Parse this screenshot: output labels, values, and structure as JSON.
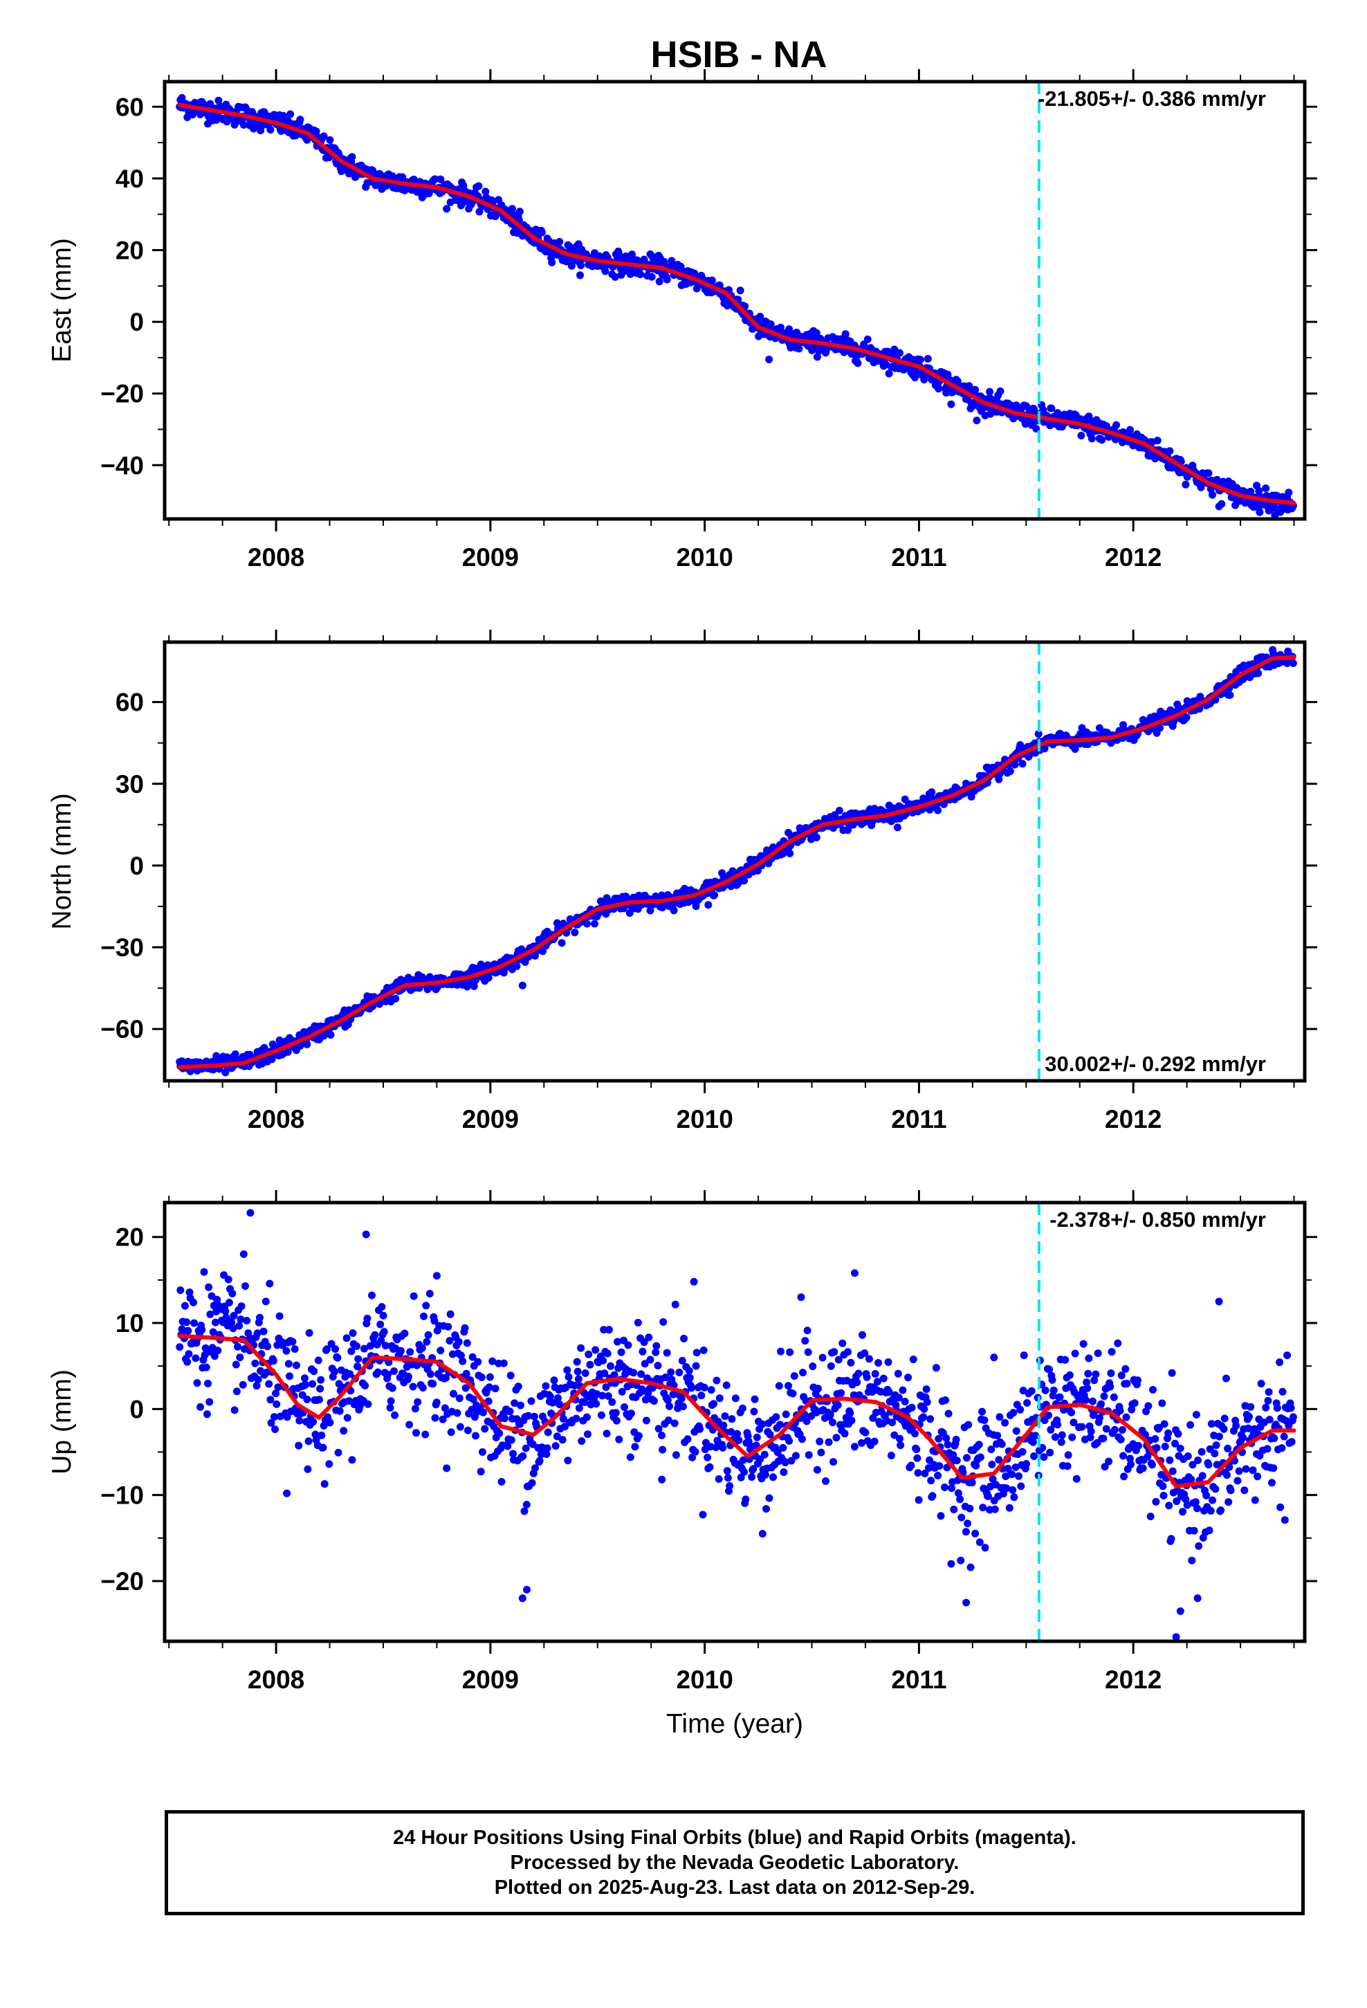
{
  "title": "HSIB - NA",
  "caption": {
    "lines": [
      "24 Hour Positions Using Final Orbits (blue) and Rapid Orbits (magenta).",
      "Processed by the Nevada Geodetic Laboratory.",
      "Plotted on 2025-Aug-23. Last data on 2012-Sep-29."
    ]
  },
  "colors": {
    "points": "#0000ff",
    "fit": "#ff0000",
    "marker_line": "#00e5ee",
    "frame": "#000000"
  },
  "chart_data": [
    {
      "type": "scatter",
      "name": "east",
      "ylabel": "East (mm)",
      "xlabel": "",
      "xlim": [
        2007.48,
        2012.8
      ],
      "ylim": [
        -55,
        67
      ],
      "xticks": [
        2008,
        2009,
        2010,
        2011,
        2012
      ],
      "xtick_labels": [
        "2008",
        "2009",
        "2010",
        "2011",
        "2012"
      ],
      "yticks": [
        60,
        40,
        20,
        0,
        -20,
        -40
      ],
      "ytick_labels": [
        "60",
        "40",
        "20",
        "0",
        "−20",
        "−40"
      ],
      "rate_label": "-21.805+/- 0.386 mm/yr",
      "rate_label_position": "top-right",
      "marker_year": 2011.56,
      "fit_line": {
        "x": [
          2007.55,
          2007.7,
          2007.85,
          2008.0,
          2008.15,
          2008.3,
          2008.45,
          2008.6,
          2008.75,
          2008.9,
          2009.05,
          2009.2,
          2009.35,
          2009.5,
          2009.65,
          2009.8,
          2009.95,
          2010.1,
          2010.25,
          2010.4,
          2010.55,
          2010.7,
          2010.85,
          2011.0,
          2011.15,
          2011.3,
          2011.45,
          2011.6,
          2011.75,
          2011.9,
          2012.05,
          2012.2,
          2012.35,
          2012.5,
          2012.65,
          2012.75
        ],
        "y": [
          60.5,
          59.0,
          57.5,
          55.5,
          52.5,
          45.0,
          40.0,
          38.5,
          37.5,
          35.0,
          31.0,
          23.5,
          19.0,
          17.0,
          16.0,
          15.0,
          12.0,
          8.0,
          -1.5,
          -5.0,
          -6.0,
          -7.5,
          -10.0,
          -12.5,
          -17.5,
          -22.5,
          -25.5,
          -27.0,
          -28.5,
          -31.0,
          -34.0,
          -39.5,
          -45.0,
          -48.5,
          -50.0,
          -50.5
        ]
      },
      "noise": 1.5,
      "outliers": [
        [
          2010.3,
          -10.5
        ],
        [
          2011.15,
          -23.0
        ],
        [
          2012.4,
          -51.5
        ],
        [
          2009.15,
          24.0
        ]
      ]
    },
    {
      "type": "scatter",
      "name": "north",
      "ylabel": "North (mm)",
      "xlabel": "",
      "xlim": [
        2007.48,
        2012.8
      ],
      "ylim": [
        -79,
        82
      ],
      "xticks": [
        2008,
        2009,
        2010,
        2011,
        2012
      ],
      "xtick_labels": [
        "2008",
        "2009",
        "2010",
        "2011",
        "2012"
      ],
      "yticks": [
        60,
        30,
        0,
        -30,
        -60
      ],
      "ytick_labels": [
        "60",
        "30",
        "0",
        "−30",
        "−60"
      ],
      "rate_label": "30.002+/- 0.292 mm/yr",
      "rate_label_position": "bottom-right",
      "marker_year": 2011.56,
      "fit_line": {
        "x": [
          2007.55,
          2007.7,
          2007.85,
          2008.0,
          2008.15,
          2008.3,
          2008.45,
          2008.6,
          2008.75,
          2008.9,
          2009.05,
          2009.2,
          2009.35,
          2009.5,
          2009.65,
          2009.8,
          2009.95,
          2010.1,
          2010.25,
          2010.4,
          2010.55,
          2010.7,
          2010.85,
          2011.0,
          2011.15,
          2011.3,
          2011.45,
          2011.6,
          2011.75,
          2011.9,
          2012.05,
          2012.2,
          2012.35,
          2012.5,
          2012.65,
          2012.75
        ],
        "y": [
          -74.0,
          -73.5,
          -72.5,
          -68.0,
          -63.0,
          -57.0,
          -50.0,
          -44.0,
          -43.0,
          -41.0,
          -37.0,
          -31.0,
          -23.0,
          -16.0,
          -13.5,
          -13.0,
          -11.0,
          -6.0,
          0.5,
          9.0,
          15.0,
          17.0,
          18.5,
          21.5,
          25.5,
          31.0,
          40.0,
          45.5,
          46.0,
          47.0,
          50.5,
          55.0,
          61.0,
          70.0,
          76.0,
          76.5
        ]
      },
      "noise": 1.5,
      "outliers": [
        [
          2009.15,
          -44.0
        ],
        [
          2010.9,
          14.0
        ],
        [
          2011.05,
          20.5
        ]
      ]
    },
    {
      "type": "scatter",
      "name": "up",
      "ylabel": "Up (mm)",
      "xlabel": "Time (year)",
      "xlim": [
        2007.48,
        2012.8
      ],
      "ylim": [
        -27,
        24
      ],
      "xticks": [
        2008,
        2009,
        2010,
        2011,
        2012
      ],
      "xtick_labels": [
        "2008",
        "2009",
        "2010",
        "2011",
        "2012"
      ],
      "yticks": [
        20,
        10,
        0,
        -10,
        -20
      ],
      "ytick_labels": [
        "20",
        "10",
        "0",
        "−10",
        "−20"
      ],
      "rate_label": "-2.378+/- 0.850 mm/yr",
      "rate_label_position": "top-right",
      "marker_year": 2011.56,
      "fit_line": {
        "x": [
          2007.55,
          2007.7,
          2007.85,
          2008.0,
          2008.1,
          2008.2,
          2008.3,
          2008.45,
          2008.6,
          2008.75,
          2008.9,
          2009.05,
          2009.2,
          2009.3,
          2009.45,
          2009.6,
          2009.75,
          2009.9,
          2010.05,
          2010.2,
          2010.35,
          2010.5,
          2010.65,
          2010.8,
          2010.95,
          2011.05,
          2011.2,
          2011.35,
          2011.5,
          2011.6,
          2011.75,
          2011.9,
          2012.05,
          2012.2,
          2012.35,
          2012.5,
          2012.65,
          2012.75
        ],
        "y": [
          8.5,
          8.3,
          8.0,
          4.0,
          0.5,
          -1.0,
          1.5,
          6.0,
          5.8,
          5.5,
          3.0,
          -2.0,
          -3.0,
          -1.0,
          3.0,
          3.5,
          3.0,
          2.0,
          -2.0,
          -5.5,
          -3.0,
          1.0,
          1.2,
          0.8,
          -1.0,
          -3.5,
          -8.0,
          -7.5,
          -3.0,
          0.2,
          0.5,
          -0.5,
          -3.5,
          -9.0,
          -8.5,
          -4.5,
          -2.5,
          -2.5
        ]
      },
      "noise": 3.5,
      "outliers": [
        [
          2007.88,
          22.8
        ],
        [
          2008.42,
          20.3
        ],
        [
          2009.15,
          -22.0
        ],
        [
          2009.17,
          -21.0
        ],
        [
          2011.22,
          -22.5
        ],
        [
          2012.2,
          -26.5
        ],
        [
          2012.22,
          -23.5
        ],
        [
          2008.05,
          -9.8
        ],
        [
          2009.8,
          -8.2
        ],
        [
          2010.27,
          -14.5
        ],
        [
          2011.15,
          -18.0
        ],
        [
          2012.3,
          -22.0
        ],
        [
          2012.4,
          12.5
        ],
        [
          2010.7,
          15.8
        ],
        [
          2009.95,
          14.8
        ],
        [
          2008.75,
          15.5
        ],
        [
          2010.45,
          13.0
        ],
        [
          2011.35,
          6.0
        ]
      ]
    }
  ]
}
